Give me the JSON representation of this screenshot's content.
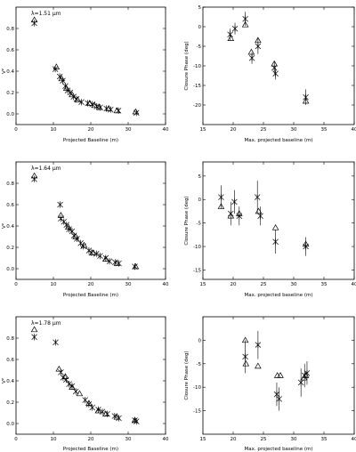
{
  "chart_data": [
    {
      "type": "scatter",
      "panel_label": "λ=1.51 μm",
      "xlabel": "Projected Baseline (m)",
      "ylabel": "V²",
      "xlim": [
        0,
        40
      ],
      "ylim": [
        -0.1,
        1.0
      ],
      "xticks": [
        0,
        10,
        20,
        30,
        40
      ],
      "yticks": [
        0.0,
        0.2,
        0.4,
        0.6,
        0.8
      ],
      "xtick_labels": [
        "0",
        "10",
        "20",
        "30",
        "40"
      ],
      "ytick_labels": [
        "0.0",
        "0.2",
        "0.4",
        "0.6",
        "0.8"
      ],
      "series": [
        {
          "marker": "cross",
          "points": [
            [
              4.9,
              0.85
            ],
            [
              10.5,
              0.42
            ],
            [
              11.7,
              0.35
            ],
            [
              12.5,
              0.31
            ],
            [
              13.2,
              0.26
            ],
            [
              13.8,
              0.22
            ],
            [
              14.5,
              0.2
            ],
            [
              15.4,
              0.16
            ],
            [
              16.2,
              0.14
            ],
            [
              17.5,
              0.11
            ],
            [
              19.2,
              0.1
            ],
            [
              20.4,
              0.09
            ],
            [
              21.6,
              0.07
            ],
            [
              22.5,
              0.06
            ],
            [
              24.2,
              0.05
            ],
            [
              25.3,
              0.04
            ],
            [
              27.4,
              0.03
            ],
            [
              32.2,
              0.01
            ]
          ]
        },
        {
          "marker": "triangle",
          "points": [
            [
              4.9,
              0.88
            ],
            [
              10.8,
              0.44
            ],
            [
              12.2,
              0.33
            ],
            [
              13.5,
              0.24
            ],
            [
              15.0,
              0.18
            ],
            [
              16.5,
              0.13
            ],
            [
              19.7,
              0.1
            ],
            [
              21.0,
              0.08
            ],
            [
              22.3,
              0.06
            ],
            [
              24.8,
              0.05
            ],
            [
              27.0,
              0.03
            ],
            [
              32.0,
              0.02
            ]
          ]
        }
      ]
    },
    {
      "type": "scatter",
      "xlabel": "Max. projected baseline (m)",
      "ylabel": "Closure Phase (deg)",
      "xlim": [
        15,
        40
      ],
      "ylim": [
        -25,
        5
      ],
      "xticks": [
        15,
        20,
        25,
        30,
        35,
        40
      ],
      "yticks": [
        -20,
        -15,
        -10,
        -5,
        0,
        5
      ],
      "xtick_labels": [
        "15",
        "20",
        "25",
        "30",
        "35",
        "40"
      ],
      "ytick_labels": [
        "-20",
        "-15",
        "-10",
        "-5",
        "0",
        "5"
      ],
      "series": [
        {
          "marker": "cross",
          "points": [
            [
              19.5,
              -2.0,
              1.5
            ],
            [
              20.3,
              -0.5,
              1.5
            ],
            [
              22.0,
              2.0,
              1.8
            ],
            [
              23.1,
              -8.0,
              1.5
            ],
            [
              24.1,
              -5.0,
              2.0
            ],
            [
              26.8,
              -10.5,
              1.5
            ],
            [
              27.0,
              -12.0,
              1.5
            ],
            [
              32.0,
              -18.0,
              2.0
            ]
          ]
        },
        {
          "marker": "triangle",
          "points": [
            [
              19.6,
              -3.0
            ],
            [
              22.0,
              0.5
            ],
            [
              23.0,
              -6.5
            ],
            [
              24.1,
              -3.5
            ],
            [
              26.8,
              -9.5
            ],
            [
              32.0,
              -19.0
            ]
          ]
        }
      ]
    },
    {
      "type": "scatter",
      "panel_label": "λ=1.64 μm",
      "xlabel": "Projected Baseline (m)",
      "ylabel": "V²",
      "xlim": [
        0,
        40
      ],
      "ylim": [
        -0.1,
        1.0
      ],
      "xticks": [
        0,
        10,
        20,
        30,
        40
      ],
      "yticks": [
        0.0,
        0.2,
        0.4,
        0.6,
        0.8
      ],
      "xtick_labels": [
        "0",
        "10",
        "20",
        "30",
        "40"
      ],
      "ytick_labels": [
        "0.0",
        "0.2",
        "0.4",
        "0.6",
        "0.8"
      ],
      "series": [
        {
          "marker": "cross",
          "points": [
            [
              4.9,
              0.84
            ],
            [
              11.8,
              0.6
            ],
            [
              12.0,
              0.47
            ],
            [
              12.8,
              0.44
            ],
            [
              13.5,
              0.41
            ],
            [
              14.2,
              0.37
            ],
            [
              15.0,
              0.35
            ],
            [
              15.5,
              0.31
            ],
            [
              16.3,
              0.28
            ],
            [
              17.3,
              0.24
            ],
            [
              18.0,
              0.21
            ],
            [
              19.5,
              0.17
            ],
            [
              20.2,
              0.15
            ],
            [
              21.5,
              0.14
            ],
            [
              22.5,
              0.12
            ],
            [
              24.0,
              0.1
            ],
            [
              25.0,
              0.07
            ],
            [
              26.5,
              0.06
            ],
            [
              27.5,
              0.05
            ],
            [
              31.8,
              0.02
            ]
          ]
        },
        {
          "marker": "triangle",
          "points": [
            [
              4.9,
              0.87
            ],
            [
              12.0,
              0.5
            ],
            [
              14.0,
              0.39
            ],
            [
              16.0,
              0.3
            ],
            [
              18.2,
              0.22
            ],
            [
              20.5,
              0.15
            ],
            [
              24.0,
              0.09
            ],
            [
              27.0,
              0.05
            ],
            [
              32.0,
              0.02
            ]
          ]
        }
      ]
    },
    {
      "type": "scatter",
      "xlabel": "Max. projected baseline (m)",
      "ylabel": "Closure Phase (deg)",
      "xlim": [
        15,
        40
      ],
      "ylim": [
        -17,
        8
      ],
      "xticks": [
        15,
        20,
        25,
        30,
        35,
        40
      ],
      "yticks": [
        -15,
        -10,
        -5,
        0,
        5
      ],
      "xtick_labels": [
        "15",
        "20",
        "25",
        "30",
        "35",
        "40"
      ],
      "ytick_labels": [
        "-15",
        "-10",
        "-5",
        "0",
        "5"
      ],
      "series": [
        {
          "marker": "cross",
          "points": [
            [
              18.0,
              0.5,
              2.5
            ],
            [
              19.6,
              -3.0,
              2.5
            ],
            [
              20.2,
              -0.5,
              2.5
            ],
            [
              21.0,
              -3.5,
              2.0
            ],
            [
              24.0,
              0.5,
              3.5
            ],
            [
              24.5,
              -3.5,
              2.0
            ],
            [
              27.0,
              -9.0,
              2.5
            ],
            [
              32.0,
              -10.0,
              2.0
            ]
          ]
        },
        {
          "marker": "triangle",
          "points": [
            [
              18.0,
              -1.5
            ],
            [
              19.6,
              -3.5
            ],
            [
              21.0,
              -3.0
            ],
            [
              24.2,
              -2.5
            ],
            [
              27.0,
              -6.0
            ],
            [
              32.0,
              -9.5
            ]
          ]
        }
      ]
    },
    {
      "type": "scatter",
      "panel_label": "λ=1.78 μm",
      "xlabel": "Projected Baseline (m)",
      "ylabel": "V²",
      "xlim": [
        0,
        40
      ],
      "ylim": [
        -0.1,
        1.0
      ],
      "xticks": [
        0,
        10,
        20,
        30,
        40
      ],
      "yticks": [
        0.0,
        0.2,
        0.4,
        0.6,
        0.8
      ],
      "xtick_labels": [
        "0",
        "10",
        "20",
        "30",
        "40"
      ],
      "ytick_labels": [
        "0.0",
        "0.2",
        "0.4",
        "0.6",
        "0.8"
      ],
      "series": [
        {
          "marker": "cross",
          "points": [
            [
              4.9,
              0.81
            ],
            [
              10.6,
              0.76
            ],
            [
              12.0,
              0.48
            ],
            [
              12.6,
              0.43
            ],
            [
              13.4,
              0.41
            ],
            [
              14.2,
              0.37
            ],
            [
              15.0,
              0.35
            ],
            [
              16.0,
              0.3
            ],
            [
              18.5,
              0.22
            ],
            [
              19.5,
              0.18
            ],
            [
              20.4,
              0.15
            ],
            [
              22.0,
              0.13
            ],
            [
              23.1,
              0.11
            ],
            [
              24.4,
              0.09
            ],
            [
              26.4,
              0.07
            ],
            [
              27.5,
              0.05
            ],
            [
              31.8,
              0.03
            ],
            [
              32.2,
              0.02
            ]
          ]
        },
        {
          "marker": "triangle",
          "points": [
            [
              4.9,
              0.88
            ],
            [
              11.5,
              0.51
            ],
            [
              13.2,
              0.44
            ],
            [
              15.0,
              0.34
            ],
            [
              17.0,
              0.28
            ],
            [
              19.5,
              0.19
            ],
            [
              22.0,
              0.12
            ],
            [
              24.0,
              0.09
            ],
            [
              27.0,
              0.06
            ],
            [
              31.8,
              0.03
            ]
          ]
        }
      ]
    },
    {
      "type": "scatter",
      "xlabel": "Max. projected baseline (m)",
      "ylabel": "Closure Phase (deg)",
      "xlim": [
        15,
        40
      ],
      "ylim": [
        -20,
        5
      ],
      "xticks": [
        15,
        20,
        25,
        30,
        35,
        40
      ],
      "yticks": [
        -15,
        -10,
        -5,
        0
      ],
      "xtick_labels": [
        "15",
        "20",
        "25",
        "30",
        "35",
        "40"
      ],
      "ytick_labels": [
        "-15",
        "-10",
        "-5",
        "0"
      ],
      "series": [
        {
          "marker": "cross",
          "points": [
            [
              22.0,
              -3.5,
              3.5
            ],
            [
              24.1,
              -1.0,
              3.0
            ],
            [
              27.2,
              -11.5,
              2.5
            ],
            [
              27.6,
              -12.5,
              2.5
            ],
            [
              31.2,
              -9.0,
              3.0
            ],
            [
              31.8,
              -7.5,
              2.5
            ],
            [
              32.2,
              -7.0,
              2.5
            ]
          ]
        },
        {
          "marker": "triangle",
          "points": [
            [
              22.0,
              0.0
            ],
            [
              22.1,
              -5.0
            ],
            [
              24.1,
              -5.5
            ],
            [
              27.3,
              -7.5
            ],
            [
              27.8,
              -7.5
            ],
            [
              31.7,
              -8.0
            ],
            [
              32.0,
              -7.5
            ]
          ]
        }
      ]
    }
  ]
}
